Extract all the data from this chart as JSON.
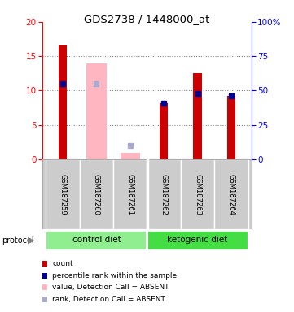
{
  "title": "GDS2738 / 1448000_at",
  "samples": [
    "GSM187259",
    "GSM187260",
    "GSM187261",
    "GSM187262",
    "GSM187263",
    "GSM187264"
  ],
  "count_values": [
    16.5,
    null,
    null,
    8.1,
    12.5,
    9.2
  ],
  "count_absent_values": [
    null,
    14.0,
    0.9,
    null,
    null,
    null
  ],
  "rank_values": [
    55,
    null,
    null,
    41,
    48,
    46
  ],
  "rank_absent_values": [
    null,
    55,
    10,
    null,
    null,
    null
  ],
  "ylim_left": [
    0,
    20
  ],
  "ylim_right": [
    0,
    100
  ],
  "yticks_left": [
    0,
    5,
    10,
    15,
    20
  ],
  "yticks_right": [
    0,
    25,
    50,
    75,
    100
  ],
  "yticklabels_right": [
    "0",
    "25",
    "50",
    "75",
    "100%"
  ],
  "bar_width": 0.45,
  "count_color": "#CC0000",
  "count_absent_color": "#FFB6C1",
  "rank_color": "#000099",
  "rank_absent_color": "#AAAACC",
  "sample_bg_color": "#CCCCCC",
  "sample_sep_color": "#FFFFFF",
  "plot_bg": "#FFFFFF",
  "grid_color": "#888888",
  "control_color": "#90EE90",
  "ketogenic_color": "#44DD44",
  "legend_items": [
    {
      "color": "#CC0000",
      "label": "count"
    },
    {
      "color": "#000099",
      "label": "percentile rank within the sample"
    },
    {
      "color": "#FFB6C1",
      "label": "value, Detection Call = ABSENT"
    },
    {
      "color": "#AAAACC",
      "label": "rank, Detection Call = ABSENT"
    }
  ]
}
